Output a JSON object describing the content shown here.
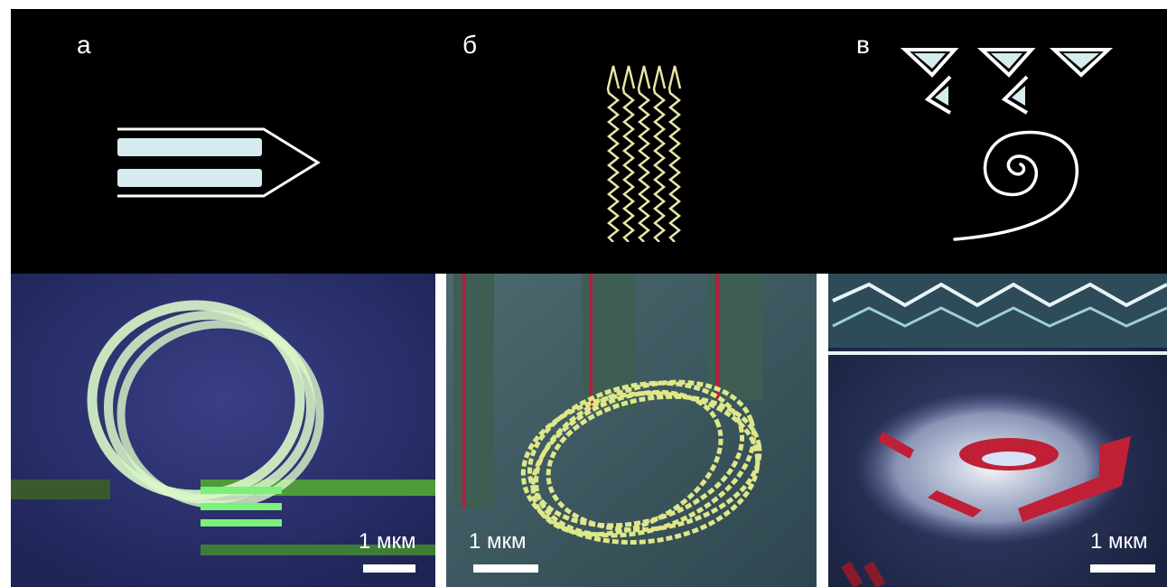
{
  "panels": [
    {
      "letter": "а",
      "scale_label": "1 мкм"
    },
    {
      "letter": "б",
      "scale_label": "1 мкм"
    },
    {
      "letter": "в",
      "scale_label": "1 мкм"
    }
  ],
  "colors": {
    "background_top": "#000000",
    "sketch_line": "#ffffff",
    "fill_light_blue": "#d6ecef",
    "wave_yellow": "#e8e6a8",
    "photo_a_bg": "#2c2f6a",
    "photo_a_accent": "#7cf07a",
    "photo_b_bg": "#3b5a63",
    "photo_b_accent": "#e8f08c",
    "photo_c_bg": "#20304a",
    "photo_c_accent": "#e02a3a"
  }
}
